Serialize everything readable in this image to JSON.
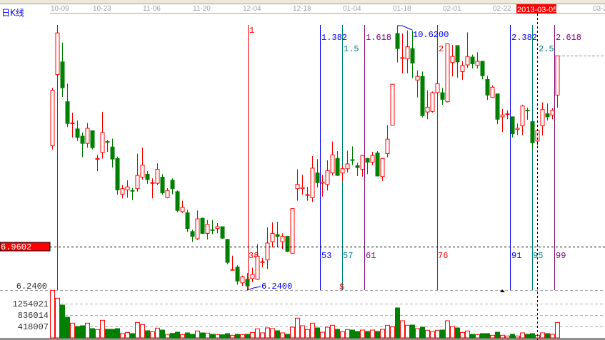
{
  "header": {
    "chart_mode_label": "日K线",
    "cursor_date": "2013-03-05",
    "cursor_price": "6.9602"
  },
  "colors": {
    "up": "#ff0000",
    "down": "#008000",
    "fib_1": "#0000ff",
    "fib_15": "#008080",
    "fib_1618": "#800080",
    "fib_int": "#ff0000",
    "annotation": "#0000ff",
    "cursor_label_bg": "#ff0000"
  },
  "chart_data": {
    "type": "candlestick",
    "date_ticks": [
      "10-09",
      "10-23",
      "11-06",
      "11-20",
      "12-04",
      "12-18",
      "01-04",
      "01-18",
      "02-01",
      "02-22",
      "03-2"
    ],
    "price_axis_ticks": [
      "6.2400"
    ],
    "volume_axis_ticks": [
      "1254021",
      "836014",
      "418007"
    ],
    "price_min_label": 6.24,
    "annotations": {
      "high": "10.6200",
      "low": "6.2400",
      "marker": "$"
    },
    "fib_time_lines": [
      {
        "top": "1",
        "bottom": "38",
        "color_key": "fib_int"
      },
      {
        "top": "1.382",
        "bottom": "53",
        "color_key": "fib_1"
      },
      {
        "top": "1.5",
        "bottom": "57",
        "color_key": "fib_15"
      },
      {
        "top": "1.618",
        "bottom": "61",
        "color_key": "fib_1618"
      },
      {
        "top": "2",
        "bottom": "76",
        "color_key": "fib_int"
      },
      {
        "top": "2.382",
        "bottom": "91",
        "color_key": "fib_1"
      },
      {
        "top": "2.5",
        "bottom": "95",
        "color_key": "fib_15"
      },
      {
        "top": "2.618",
        "bottom": "99",
        "color_key": "fib_1618"
      }
    ],
    "ohlc_order": [
      "open",
      "high",
      "low",
      "close"
    ],
    "ohlc": [
      [
        8.63,
        9.59,
        8.57,
        9.55
      ],
      [
        9.81,
        10.5,
        9.81,
        10.5
      ],
      [
        10.02,
        10.34,
        9.44,
        9.59
      ],
      [
        9.36,
        9.66,
        8.94,
        9.0
      ],
      [
        9.01,
        9.18,
        8.77,
        9.01
      ],
      [
        8.91,
        9.05,
        8.71,
        8.77
      ],
      [
        8.79,
        8.85,
        8.44,
        8.67
      ],
      [
        8.67,
        9.01,
        8.6,
        8.92
      ],
      [
        8.88,
        8.88,
        8.57,
        8.6
      ],
      [
        8.42,
        8.48,
        8.21,
        8.42
      ],
      [
        8.52,
        9.19,
        8.42,
        8.85
      ],
      [
        8.7,
        8.73,
        8.53,
        8.69
      ],
      [
        8.61,
        8.75,
        8.27,
        8.41
      ],
      [
        8.42,
        8.45,
        7.82,
        7.9
      ],
      [
        7.83,
        7.98,
        7.76,
        7.92
      ],
      [
        7.9,
        8.06,
        7.77,
        7.95
      ],
      [
        7.89,
        7.93,
        7.73,
        7.88
      ],
      [
        7.92,
        8.5,
        7.87,
        8.14
      ],
      [
        8.11,
        8.6,
        8.07,
        8.31
      ],
      [
        8.16,
        8.21,
        8.0,
        8.07
      ],
      [
        8.02,
        8.09,
        7.76,
        8.02
      ],
      [
        8.01,
        8.34,
        7.98,
        8.24
      ],
      [
        8.11,
        8.16,
        7.82,
        7.85
      ],
      [
        7.77,
        7.93,
        7.76,
        7.89
      ],
      [
        8.06,
        8.09,
        7.83,
        7.92
      ],
      [
        7.87,
        7.89,
        7.53,
        7.56
      ],
      [
        7.54,
        7.72,
        7.52,
        7.61
      ],
      [
        7.52,
        7.57,
        7.2,
        7.26
      ],
      [
        7.21,
        7.24,
        7.04,
        7.13
      ],
      [
        7.09,
        7.56,
        7.07,
        7.42
      ],
      [
        7.43,
        7.44,
        7.17,
        7.18
      ],
      [
        7.18,
        7.4,
        7.08,
        7.33
      ],
      [
        7.24,
        7.4,
        7.17,
        7.23
      ],
      [
        7.26,
        7.35,
        7.18,
        7.29
      ],
      [
        7.29,
        7.29,
        7.09,
        7.1
      ],
      [
        7.08,
        7.09,
        6.67,
        6.7
      ],
      [
        6.58,
        6.81,
        6.57,
        6.58
      ],
      [
        6.62,
        6.65,
        6.33,
        6.39
      ],
      [
        6.36,
        6.48,
        6.31,
        6.46
      ],
      [
        6.42,
        6.52,
        6.24,
        6.31
      ],
      [
        6.43,
        6.61,
        6.37,
        6.5
      ],
      [
        6.42,
        7.0,
        6.41,
        6.8
      ],
      [
        6.71,
        6.77,
        6.62,
        6.71
      ],
      [
        6.74,
        7.28,
        6.59,
        7.02
      ],
      [
        7.04,
        7.36,
        6.95,
        7.18
      ],
      [
        7.16,
        7.37,
        6.95,
        7.13
      ],
      [
        7.04,
        7.18,
        6.92,
        7.13
      ],
      [
        7.13,
        7.13,
        6.87,
        6.88
      ],
      [
        6.85,
        7.59,
        6.85,
        7.59
      ],
      [
        7.92,
        8.24,
        7.72,
        7.99
      ],
      [
        7.92,
        8.15,
        7.82,
        7.94
      ],
      [
        7.82,
        7.95,
        7.72,
        7.82
      ],
      [
        7.77,
        8.46,
        7.7,
        8.26
      ],
      [
        8.18,
        8.41,
        7.94,
        8.02
      ],
      [
        8.01,
        8.15,
        7.79,
        8.03
      ],
      [
        7.99,
        8.39,
        7.89,
        8.22
      ],
      [
        8.18,
        8.7,
        8.14,
        8.48
      ],
      [
        8.42,
        8.54,
        8.13,
        8.14
      ],
      [
        8.18,
        8.3,
        8.05,
        8.25
      ],
      [
        8.25,
        8.55,
        8.19,
        8.33
      ],
      [
        8.4,
        8.62,
        8.31,
        8.39
      ],
      [
        8.3,
        8.35,
        8.13,
        8.27
      ],
      [
        8.24,
        8.48,
        8.12,
        8.47
      ],
      [
        8.42,
        8.43,
        8.16,
        8.36
      ],
      [
        8.36,
        8.53,
        8.31,
        8.47
      ],
      [
        8.51,
        8.54,
        8.13,
        8.13
      ],
      [
        8.12,
        8.42,
        8.05,
        8.42
      ],
      [
        8.5,
        8.97,
        8.44,
        8.74
      ],
      [
        8.97,
        9.65,
        8.97,
        9.65
      ],
      [
        10.49,
        10.62,
        10.01,
        10.24
      ],
      [
        10.09,
        10.49,
        9.83,
        10.09
      ],
      [
        10.07,
        10.54,
        9.83,
        10.27
      ],
      [
        10.24,
        10.54,
        9.75,
        10.0
      ],
      [
        9.72,
        9.88,
        9.43,
        9.78
      ],
      [
        9.78,
        9.86,
        9.1,
        9.13
      ],
      [
        9.19,
        9.55,
        9.07,
        9.27
      ],
      [
        9.2,
        9.53,
        9.18,
        9.51
      ],
      [
        9.51,
        9.72,
        9.49,
        9.66
      ],
      [
        9.51,
        9.59,
        9.31,
        9.4
      ],
      [
        9.36,
        10.32,
        9.35,
        10.32
      ],
      [
        10.01,
        10.3,
        9.78,
        10.11
      ],
      [
        10.29,
        10.29,
        9.76,
        10.02
      ],
      [
        9.86,
        10.03,
        9.72,
        9.96
      ],
      [
        9.97,
        10.51,
        9.92,
        10.11
      ],
      [
        10.1,
        10.14,
        9.91,
        9.99
      ],
      [
        9.96,
        10.18,
        9.91,
        10.03
      ],
      [
        10.03,
        10.03,
        9.73,
        9.79
      ],
      [
        9.73,
        9.79,
        9.39,
        9.47
      ],
      [
        9.43,
        9.63,
        9.43,
        9.6
      ],
      [
        9.49,
        9.49,
        8.99,
        9.07
      ],
      [
        9.11,
        9.24,
        8.86,
        9.14
      ],
      [
        9.16,
        9.22,
        9.07,
        9.16
      ],
      [
        9.11,
        9.11,
        8.77,
        8.83
      ],
      [
        8.9,
        9.0,
        8.81,
        8.92
      ],
      [
        8.96,
        9.31,
        8.81,
        9.29
      ],
      [
        9.22,
        9.26,
        9.06,
        9.21
      ],
      [
        9.03,
        9.03,
        8.57,
        8.68
      ],
      [
        8.71,
        8.9,
        8.64,
        8.88
      ],
      [
        8.96,
        9.35,
        8.8,
        9.23
      ],
      [
        9.16,
        9.33,
        9.05,
        9.11
      ],
      [
        9.14,
        9.25,
        9.07,
        9.22
      ],
      [
        9.47,
        10.12,
        9.26,
        10.12
      ]
    ],
    "volume": [
      1741600,
      1454236,
      1201704,
      757596,
      539896,
      417984,
      444108,
      539896,
      339612,
      304780,
      644392,
      313488,
      313488,
      339612,
      156744,
      200284,
      156744,
      566020,
      487648,
      261240,
      226408,
      357028,
      287364,
      130620,
      165452,
      208992,
      121912,
      182868,
      130620,
      252532,
      182868,
      174160,
      130620,
      121912,
      113204,
      156744,
      95788,
      130620,
      121912,
      130620,
      200284,
      330904,
      182868,
      365736,
      339612,
      261240,
      182868,
      130620,
      391860,
      722764,
      444108,
      304780,
      539896,
      365736,
      208992,
      391860,
      461524,
      313488,
      226408,
      304780,
      287364,
      235116,
      287364,
      235116,
      287364,
      235116,
      313488,
      461524,
      417984,
      1097208,
      626976,
      461524,
      470232,
      339612,
      391860,
      278656,
      235116,
      278656,
      287364,
      626976,
      417984,
      365736,
      200284,
      252532,
      130620,
      121912,
      156744,
      156744,
      95788,
      208992,
      95788,
      69664,
      130620,
      69664,
      182868,
      130620,
      156744,
      95788,
      182868,
      156744,
      130620,
      566020
    ]
  }
}
